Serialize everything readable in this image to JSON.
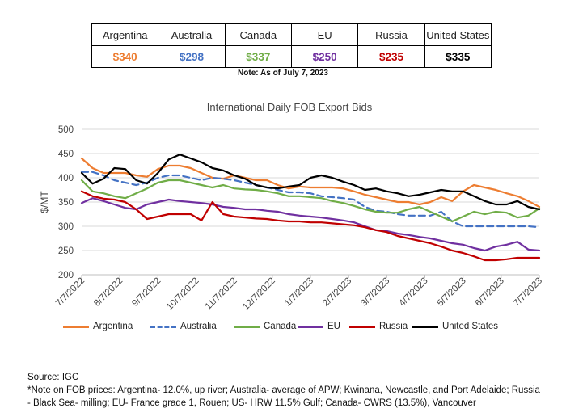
{
  "table": {
    "headers": [
      "Argentina",
      "Australia",
      "Canada",
      "EU",
      "Russia",
      "United States"
    ],
    "values": [
      "$340",
      "$298",
      "$337",
      "$250",
      "$235",
      "$335"
    ],
    "value_colors": [
      "#ED7D31",
      "#4472C4",
      "#70AD47",
      "#7030A0",
      "#C00000",
      "#000000"
    ]
  },
  "note": "Note: As of July 7, 2023",
  "chart_data": {
    "type": "line",
    "title": "International Daily FOB Export Bids",
    "ylabel": "$/MT",
    "ylim": [
      200,
      500
    ],
    "yticks": [
      200,
      250,
      300,
      350,
      400,
      450,
      500
    ],
    "xticks": [
      "7/7/2022",
      "8/7/2022",
      "9/7/2022",
      "10/7/2022",
      "11/7/2022",
      "12/7/2022",
      "1/7/2023",
      "2/7/2023",
      "3/7/2023",
      "4/7/2023",
      "5/7/2023",
      "6/7/2023",
      "7/7/2023"
    ],
    "grid": true,
    "legend_position": "bottom",
    "series": [
      {
        "name": "Argentina",
        "color": "#ED7D31",
        "dash": "solid",
        "values": [
          440,
          420,
          410,
          410,
          410,
          405,
          402,
          418,
          425,
          425,
          420,
          410,
          400,
          398,
          405,
          400,
          395,
          395,
          385,
          378,
          382,
          380,
          380,
          380,
          378,
          372,
          365,
          360,
          355,
          350,
          350,
          345,
          350,
          360,
          352,
          372,
          385,
          380,
          375,
          368,
          362,
          352,
          340
        ]
      },
      {
        "name": "Australia",
        "color": "#4472C4",
        "dash": "dashed",
        "values": [
          412,
          412,
          405,
          395,
          390,
          385,
          390,
          400,
          405,
          405,
          400,
          395,
          400,
          398,
          395,
          390,
          385,
          380,
          375,
          370,
          370,
          368,
          362,
          360,
          358,
          355,
          340,
          332,
          330,
          325,
          322,
          322,
          322,
          330,
          310,
          300,
          300,
          300,
          300,
          300,
          300,
          300,
          298
        ]
      },
      {
        "name": "Canada",
        "color": "#70AD47",
        "dash": "solid",
        "values": [
          395,
          372,
          368,
          362,
          358,
          368,
          378,
          390,
          395,
          395,
          390,
          385,
          380,
          385,
          378,
          376,
          375,
          372,
          368,
          362,
          362,
          360,
          358,
          352,
          348,
          342,
          335,
          330,
          328,
          328,
          335,
          340,
          330,
          320,
          310,
          320,
          330,
          325,
          330,
          328,
          318,
          322,
          337
        ]
      },
      {
        "name": "EU",
        "color": "#7030A0",
        "dash": "solid",
        "values": [
          348,
          358,
          352,
          345,
          338,
          335,
          345,
          350,
          355,
          352,
          350,
          348,
          345,
          340,
          338,
          335,
          335,
          332,
          330,
          325,
          322,
          320,
          318,
          315,
          312,
          308,
          300,
          292,
          290,
          285,
          282,
          278,
          275,
          270,
          265,
          262,
          255,
          250,
          258,
          262,
          268,
          252,
          250
        ]
      },
      {
        "name": "Russia",
        "color": "#C00000",
        "dash": "solid",
        "values": [
          372,
          362,
          357,
          355,
          350,
          335,
          315,
          320,
          325,
          325,
          325,
          312,
          350,
          325,
          320,
          318,
          316,
          315,
          312,
          310,
          310,
          308,
          308,
          306,
          304,
          302,
          298,
          292,
          288,
          280,
          275,
          270,
          265,
          258,
          250,
          245,
          238,
          230,
          230,
          232,
          235,
          235,
          235
        ]
      },
      {
        "name": "United States",
        "color": "#000000",
        "dash": "solid",
        "values": [
          410,
          388,
          398,
          420,
          418,
          395,
          388,
          410,
          438,
          448,
          440,
          432,
          420,
          415,
          405,
          398,
          385,
          380,
          378,
          382,
          385,
          400,
          405,
          400,
          392,
          385,
          375,
          378,
          372,
          368,
          362,
          365,
          370,
          375,
          372,
          372,
          362,
          352,
          345,
          345,
          352,
          340,
          335
        ]
      }
    ]
  },
  "source": "Source: IGC",
  "footnote": "*Note on FOB prices: Argentina- 12.0%, up river; Australia- average of APW; Kwinana, Newcastle, and Port Adelaide; Russia - Black Sea- milling; EU- France grade 1, Rouen; US- HRW 11.5% Gulf; Canada- CWRS (13.5%), Vancouver"
}
